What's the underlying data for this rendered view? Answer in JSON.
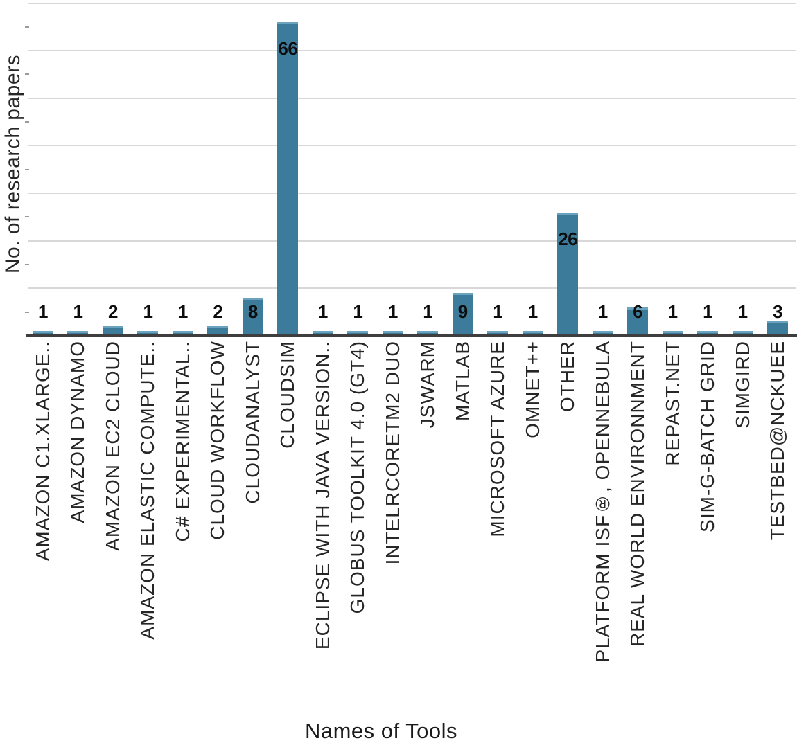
{
  "chart_data": {
    "type": "bar",
    "title": "",
    "xlabel": "Names of Tools",
    "ylabel": "No. of research papers",
    "categories": [
      "AMAZON C1.XLARGE..",
      "AMAZON DYNAMO",
      "AMAZON EC2 CLOUD",
      "AMAZON ELASTIC COMPUTE..",
      "C# EXPERIMENTAL..",
      "CLOUD WORKFLOW",
      "CLOUDANALYST",
      "CLOUDSIM",
      "ECLIPSE WITH JAVA VERSION..",
      "GLOBUS TOOLKIT 4.0 (GT4)",
      "INTELRCORETM2 DUO",
      "JSWARM",
      "MATLAB",
      "MICROSOFT AZURE",
      "OMNET++",
      "OTHER",
      "PLATFORM ISF®, OPENNEBULA",
      "REAL WORLD ENVIRONNMENT",
      "REPAST.NET",
      "SIM-G-BATCH GRID",
      "SIMGIRD",
      "TESTBED@NCKUEE"
    ],
    "values": [
      1,
      1,
      2,
      1,
      1,
      2,
      8,
      66,
      1,
      1,
      1,
      1,
      9,
      1,
      1,
      26,
      1,
      6,
      1,
      1,
      1,
      3
    ],
    "ylim": [
      0,
      70
    ],
    "gridline_interval": 10,
    "grid": true,
    "legend": "none",
    "colors": {
      "bar_fill": "#3d7b9b",
      "bar_top_edge": "#6ba3bf",
      "gridline": "#d8d8d8",
      "minor_tick": "#9b9b9b",
      "axis_line": "#3e3e3e",
      "value_label": "#0d0d0d",
      "text": "#262626"
    }
  }
}
